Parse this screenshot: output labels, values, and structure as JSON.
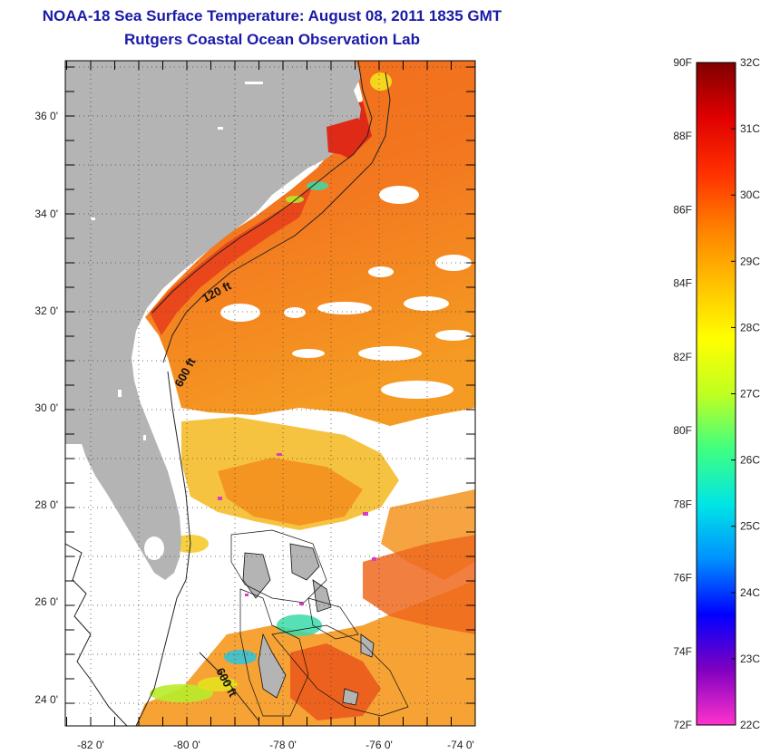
{
  "title": "NOAA-18 Sea Surface Temperature:  August 08, 2011 1835 GMT",
  "subtitle": "Rutgers Coastal Ocean Observation Lab",
  "map": {
    "longitude_labels": [
      "-82 0'",
      "-80 0'",
      "-78 0'",
      "-76 0'",
      "-74 0'"
    ],
    "latitude_labels": [
      "36 0'",
      "34 0'",
      "32 0'",
      "30 0'",
      "28 0'",
      "26 0'",
      "24 0'"
    ],
    "contour_labels": [
      "120 ft",
      "600 ft",
      "600 ft"
    ],
    "colors": {
      "land": "#b4b4b4",
      "cloud": "#ffffff",
      "sst_warm": "#f57a1e",
      "sst_hot": "#e8341a",
      "sst_mid": "#f5c51e",
      "sst_cool": "#2dd8c8"
    }
  },
  "colorbar": {
    "fahrenheit_labels": [
      "90F",
      "88F",
      "86F",
      "84F",
      "82F",
      "80F",
      "78F",
      "76F",
      "74F",
      "72F"
    ],
    "celsius_labels": [
      "32C",
      "31C",
      "30C",
      "29C",
      "28C",
      "27C",
      "26C",
      "25C",
      "24C",
      "23C",
      "22C"
    ],
    "range_f": [
      72,
      90
    ],
    "range_c": [
      22,
      32
    ],
    "gradient": [
      "#ff33cc",
      "#8000c0",
      "#0000ff",
      "#0090ff",
      "#00e5e5",
      "#40ff80",
      "#c0ff20",
      "#ffff00",
      "#ffc000",
      "#ff8000",
      "#ff3000",
      "#e00000",
      "#800000"
    ]
  }
}
